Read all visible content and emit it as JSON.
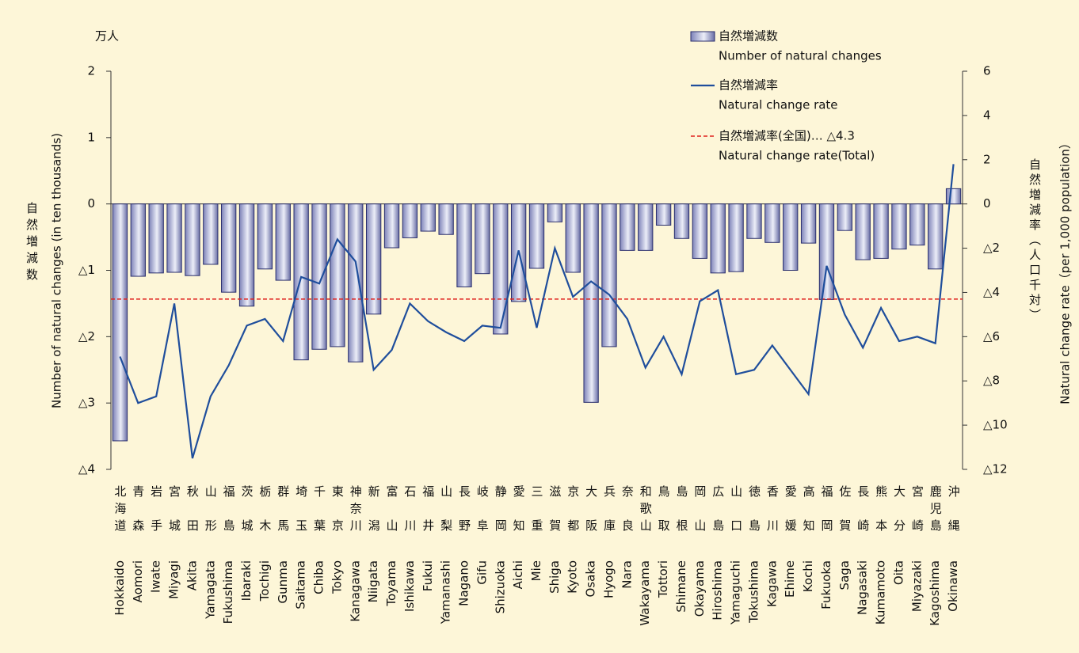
{
  "chart_data": {
    "type": "combo",
    "unit_label": "万人",
    "y_label_ja": "自然増減数",
    "y_label": "Number of  natural changes (in ten thousands)",
    "y2_label_ja": "自然増減率（人口千対）",
    "y2_label": "Natural change rate（per 1,000 population）",
    "categories": [
      "Hokkaido",
      "Aomori",
      "Iwate",
      "Miyagi",
      "Akita",
      "Yamagata",
      "Fukushima",
      "Ibaraki",
      "Tochigi",
      "Gunma",
      "Saitama",
      "Chiba",
      "Tokyo",
      "Kanagawa",
      "Niigata",
      "Toyama",
      "Ishikawa",
      "Fukui",
      "Yamanashi",
      "Nagano",
      "Gifu",
      "Shizuoka",
      "Aichi",
      "Mie",
      "Shiga",
      "Kyoto",
      "Osaka",
      "Hyogo",
      "Nara",
      "Wakayama",
      "Tottori",
      "Shimane",
      "Okayama",
      "Hiroshima",
      "Yamaguchi",
      "Tokushima",
      "Kagawa",
      "Ehime",
      "Kochi",
      "Fukuoka",
      "Saga",
      "Nagasaki",
      "Kumamoto",
      "Oita",
      "Miyazaki",
      "Kagoshima",
      "Okinawa"
    ],
    "categories_ja": [
      "北海道",
      "青森",
      "岩手",
      "宮城",
      "秋田",
      "山形",
      "福島",
      "茨城",
      "栃木",
      "群馬",
      "埼玉",
      "千葉",
      "東京",
      "神奈川",
      "新潟",
      "富山",
      "石川",
      "福井",
      "山梨",
      "長野",
      "岐阜",
      "静岡",
      "愛知",
      "三重",
      "滋賀",
      "京都",
      "大阪",
      "兵庫",
      "奈良",
      "和歌山",
      "鳥取",
      "島根",
      "岡山",
      "広島",
      "山口",
      "徳島",
      "香川",
      "愛媛",
      "高知",
      "福岡",
      "佐賀",
      "長崎",
      "熊本",
      "大分",
      "宮崎",
      "鹿児島",
      "沖縄"
    ],
    "series": [
      {
        "type": "bar",
        "name": "自然増減数",
        "name_en": "Number of  natural changes",
        "color": "#2a2f6e",
        "values": [
          -3.57,
          -1.09,
          -1.04,
          -1.03,
          -1.08,
          -0.91,
          -1.33,
          -1.54,
          -0.98,
          -1.15,
          -2.35,
          -2.19,
          -2.15,
          -2.38,
          -1.66,
          -0.66,
          -0.51,
          -0.41,
          -0.46,
          -1.25,
          -1.05,
          -1.96,
          -1.47,
          -0.97,
          -0.27,
          -1.03,
          -2.99,
          -2.15,
          -0.7,
          -0.7,
          -0.32,
          -0.52,
          -0.82,
          -1.04,
          -1.02,
          -0.52,
          -0.58,
          -1.0,
          -0.59,
          -1.44,
          -0.4,
          -0.84,
          -0.82,
          -0.68,
          -0.62,
          -0.98,
          0.23
        ]
      },
      {
        "type": "line",
        "axis": "y2",
        "name": "自然増減率",
        "name_en": "Natural change rate",
        "color": "#1f4e9c",
        "values": [
          -6.9,
          -9.0,
          -8.7,
          -4.5,
          -11.5,
          -8.7,
          -7.3,
          -5.5,
          -5.2,
          -6.2,
          -3.3,
          -3.6,
          -1.6,
          -2.6,
          -7.5,
          -6.6,
          -4.5,
          -5.3,
          -5.8,
          -6.2,
          -5.5,
          -5.6,
          -2.1,
          -5.6,
          -2.0,
          -4.2,
          -3.5,
          -4.1,
          -5.2,
          -7.4,
          -6.0,
          -7.7,
          -4.4,
          -3.9,
          -7.7,
          -7.5,
          -6.4,
          -7.5,
          -8.6,
          -2.8,
          -5.0,
          -6.5,
          -4.7,
          -6.2,
          -6.0,
          -6.3,
          1.8
        ]
      }
    ],
    "reference": {
      "name": "自然増減率(全国)… △4.3",
      "name_en": "Natural change rate(Total)",
      "value": -4.3,
      "axis": "y2",
      "color": "#e0201c"
    },
    "ylim": [
      -4,
      2
    ],
    "yticks": [
      {
        "value": -4,
        "label": "△4"
      },
      {
        "value": -3,
        "label": "△3"
      },
      {
        "value": -2,
        "label": "△2"
      },
      {
        "value": -1,
        "label": "△1"
      },
      0,
      1,
      2
    ],
    "y2lim": [
      -12,
      6
    ],
    "y2ticks": [
      {
        "value": -12,
        "label": "△12"
      },
      {
        "value": -10,
        "label": "△10"
      },
      {
        "value": -8,
        "label": "△8"
      },
      {
        "value": -6,
        "label": "△6"
      },
      {
        "value": -4,
        "label": "△4"
      },
      {
        "value": -2,
        "label": "△2"
      },
      0,
      2,
      4,
      6
    ]
  }
}
